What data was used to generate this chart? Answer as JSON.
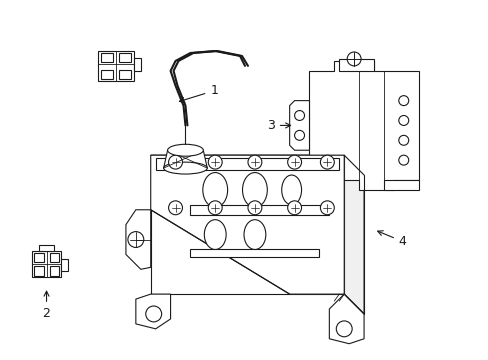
{
  "background_color": "#ffffff",
  "line_color": "#1a1a1a",
  "line_width": 0.8,
  "label_fontsize": 9,
  "figsize": [
    4.89,
    3.6
  ],
  "dpi": 100
}
